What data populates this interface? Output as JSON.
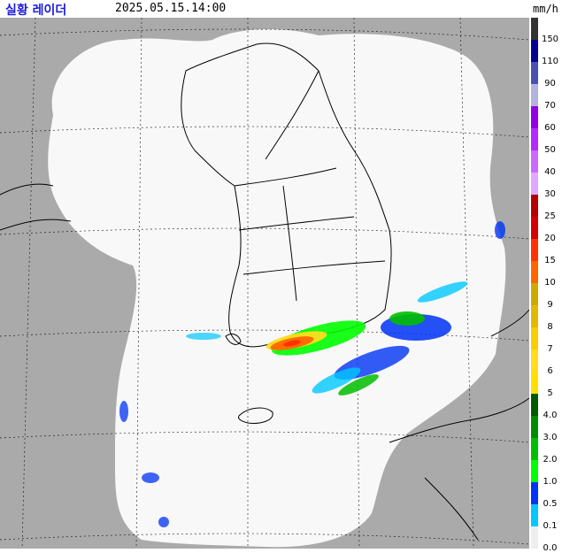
{
  "header": {
    "title": "실황 레이더",
    "timestamp": "2025.05.15.14:00",
    "unit": "mm/h"
  },
  "legend": {
    "levels": [
      {
        "label": "150",
        "color": "#333333"
      },
      {
        "label": "110",
        "color": "#000390"
      },
      {
        "label": "90",
        "color": "#4c4eb1"
      },
      {
        "label": "70",
        "color": "#b3b4de"
      },
      {
        "label": "60",
        "color": "#9300e4"
      },
      {
        "label": "50",
        "color": "#b329ff"
      },
      {
        "label": "40",
        "color": "#c969ff"
      },
      {
        "label": "30",
        "color": "#e0a9ff"
      },
      {
        "label": "25",
        "color": "#b40000"
      },
      {
        "label": "20",
        "color": "#d20000"
      },
      {
        "label": "15",
        "color": "#ff3300"
      },
      {
        "label": "10",
        "color": "#ff6600"
      },
      {
        "label": "9",
        "color": "#ccaa00"
      },
      {
        "label": "8",
        "color": "#e0b900"
      },
      {
        "label": "7",
        "color": "#f9cd00"
      },
      {
        "label": "6",
        "color": "#ffdc1f"
      },
      {
        "label": "5",
        "color": "#ffe100"
      },
      {
        "label": "4.0",
        "color": "#005a00"
      },
      {
        "label": "3.0",
        "color": "#008c00"
      },
      {
        "label": "2.0",
        "color": "#00be00"
      },
      {
        "label": "1.0",
        "color": "#00ff00"
      },
      {
        "label": "0.5",
        "color": "#0033f5"
      },
      {
        "label": "0.1",
        "color": "#00c8ff"
      },
      {
        "label": "0.0",
        "color": "#eeeeee"
      }
    ]
  },
  "map": {
    "background_color": "#aaaaaa",
    "coverage_color": "#f8f8f8",
    "outline_color": "#000000",
    "grid_color": "#000000"
  }
}
